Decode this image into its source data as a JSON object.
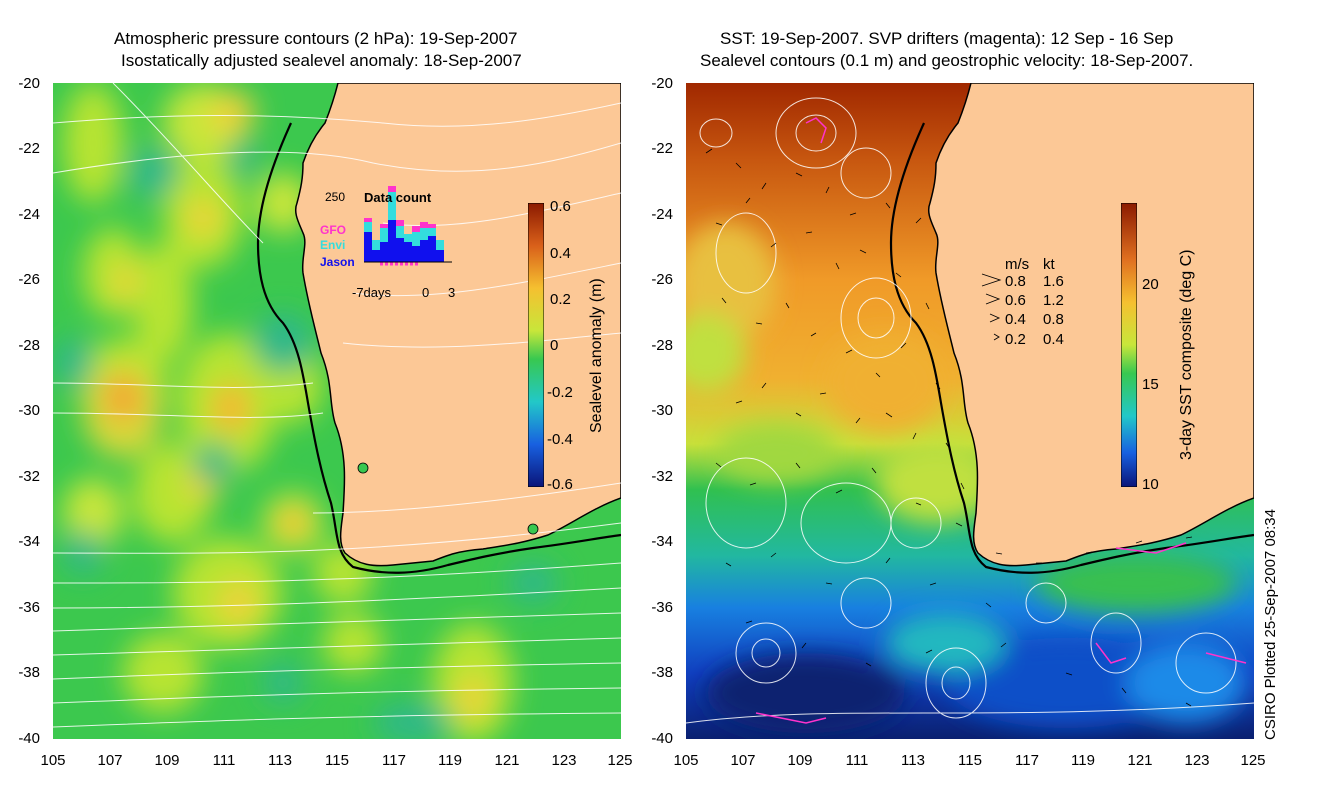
{
  "left_panel": {
    "title_line1": "Atmospheric pressure contours (2 hPa): 19-Sep-2007",
    "title_line2": "Isostatically adjusted sealevel anomaly: 18-Sep-2007",
    "colorbar": {
      "label": "Sealevel anomaly (m)",
      "ticks": [
        "0.6",
        "0.4",
        "0.2",
        "0",
        "-0.2",
        "-0.4",
        "-0.6"
      ]
    },
    "inset": {
      "title": "Data count",
      "ymax": "250",
      "series": [
        "GFO",
        "Envi",
        "Jason"
      ],
      "xlabel_left": "-7days",
      "xlabel_mid": "0",
      "xlabel_right": "3",
      "colors": {
        "GFO": "#ff33cc",
        "Envi": "#33dddd",
        "Jason": "#1010ee"
      }
    }
  },
  "right_panel": {
    "title_line1": "SST: 19-Sep-2007. SVP drifters (magenta): 12 Sep - 16 Sep",
    "title_line2": "Sealevel contours (0.1 m) and geostrophic velocity: 18-Sep-2007.",
    "colorbar": {
      "label": "3-day SST composite (deg C)",
      "ticks": [
        "20",
        "15",
        "10"
      ]
    },
    "velocity_legend": {
      "header_ms": "m/s",
      "header_kt": "kt",
      "rows": [
        {
          "ms": "0.8",
          "kt": "1.6"
        },
        {
          "ms": "0.6",
          "kt": "1.2"
        },
        {
          "ms": "0.4",
          "kt": "0.8"
        },
        {
          "ms": "0.2",
          "kt": "0.4"
        }
      ]
    }
  },
  "axes": {
    "lat_ticks": [
      "-20",
      "-22",
      "-24",
      "-26",
      "-28",
      "-30",
      "-32",
      "-34",
      "-36",
      "-38",
      "-40"
    ],
    "lon_ticks": [
      "105",
      "107",
      "109",
      "111",
      "113",
      "115",
      "117",
      "119",
      "121",
      "123",
      "125"
    ]
  },
  "credit": "CSIRO Plotted 25-Sep-2007 08:34",
  "colors": {
    "land": "#fcc896",
    "sla_bg": "#38c850",
    "coast": "#000000"
  }
}
